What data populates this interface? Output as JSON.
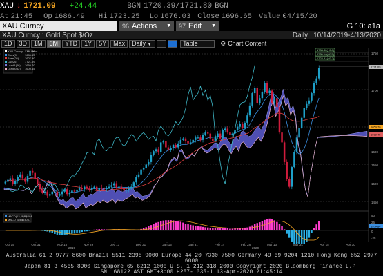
{
  "quote": {
    "ticker": "XAU",
    "arrow": "↓",
    "last": "1721.09",
    "change": "+24.44",
    "currency": "BGN",
    "bid_ask": "1720.39/1721.80",
    "ask_label": "BGN",
    "time_label": "At",
    "time": "21:45",
    "open_label": "Op",
    "open": "1686.49",
    "high_label": "Hi",
    "high": "1723.25",
    "low_label": "Lo",
    "low": "1676.03",
    "close_label": "Close",
    "close": "1696.65",
    "value_label": "Value",
    "value": "04/15/20"
  },
  "command": {
    "input_value": "XAU Curncy",
    "actions_num": "96",
    "actions_label": "Actions",
    "edit_num": "97",
    "edit_label": "Edit",
    "code": "G 10: a1a"
  },
  "title": {
    "security": "XAU Curncy : Gold Spot  $/Oz",
    "period": "Daily",
    "range": "10/14/2019-4/13/2020"
  },
  "toolbar": {
    "ranges": [
      "1D",
      "3D",
      "1M",
      "6M",
      "YTD",
      "1Y",
      "5Y",
      "Max"
    ],
    "selected_range": "6M",
    "frequency": "Daily",
    "table_label": "Table",
    "chart_content_label": "Chart Content"
  },
  "legend": [
    {
      "label": "XAU Curncy - Last Price",
      "value": "1721.09",
      "color": "#ffffff"
    },
    {
      "label": "Conv(9)",
      "value": "1686.55",
      "color": "#3b8fe0"
    },
    {
      "label": "Base(26)",
      "value": "1607.90",
      "color": "#e04040"
    },
    {
      "label": "Lag(26)",
      "value": "1721.09",
      "color": "#3fb8c8"
    },
    {
      "label": "LeadA(26)",
      "value": "1659.70",
      "color": "#7b7bdb"
    },
    {
      "label": "LeadB(52)",
      "value": "1609.45",
      "color": "#e8b0c0"
    }
  ],
  "price_axis": {
    "ticks": [
      "1750",
      "1700",
      "1650",
      "1600",
      "1550",
      "1500",
      "1450"
    ],
    "badges": [
      {
        "text": "1721.09",
        "color": "#bbbbbb"
      },
      {
        "text": "1659.70",
        "color": "#f5a623"
      },
      {
        "text": "1609.45",
        "color": "#e06060"
      }
    ]
  },
  "annotations": [
    "1734.82(+0.8)",
    "1730.19(+0.5)",
    "1724.91(+0.2)"
  ],
  "macd": {
    "legend": [
      {
        "label": "MACD(12,26,9)",
        "value": "19.5484",
        "color": "#3b8fe0"
      },
      {
        "label": "MACD Signal",
        "value": "5.4067",
        "color": "#f5a623"
      }
    ],
    "ticks": [
      "50",
      "25",
      "0",
      "-25"
    ],
    "badge": "19.5484"
  },
  "x_axis": {
    "labels": [
      "Oct 15",
      "Oct 31",
      "Nov 15",
      "Nov 29",
      "Dec 13",
      "Dec 31",
      "Jan 15",
      "Jan 31",
      "Feb 14",
      "Feb 28",
      "Mar 13",
      "Mar 31",
      "Apr 15",
      "Apr 30"
    ],
    "years": [
      "2019",
      "2020"
    ]
  },
  "footer": {
    "line1": "Australia 61 2 9777 8600 Brazil 5511 2395 9000 Europe 44 20 7330 7500 Germany 49 69 9204 1210 Hong Kong 852 2977 6000",
    "line2": "Japan 81 3 4565 8900          Singapore 65 6212 1000          U.S. 1 212 318 2000          Copyright 2020 Bloomberg Finance L.P.",
    "line3": "SN 168122 AST  GMT+3:00 H257-1035-1 13-Apr-2020 21:45:14"
  },
  "colors": {
    "up": "#1ea0c8",
    "down": "#d01c3c",
    "cloud": "#6a6af0",
    "macd_pos": "#ff3dcc",
    "macd_neg": "#2ab0e6"
  }
}
